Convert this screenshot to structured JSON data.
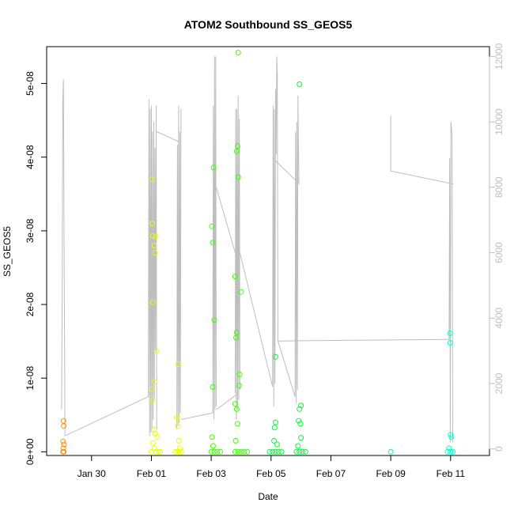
{
  "chart_data": {
    "type": "scatter",
    "title": "ATOM2 Southbound SS_GEOS5",
    "xlabel": "Date",
    "ylabel": "SS_GEOS5",
    "x_ticks": [
      "Jan 30",
      "Feb 01",
      "Feb 03",
      "Feb 05",
      "Feb 07",
      "Feb 09",
      "Feb 11"
    ],
    "x_tick_days": [
      30,
      32,
      34,
      36,
      38,
      40,
      42
    ],
    "xlim_days": [
      28.5,
      43.3
    ],
    "y_ticks": [
      "0e+00",
      "1e-08",
      "2e-08",
      "3e-08",
      "4e-08",
      "5e-08"
    ],
    "y_tick_values": [
      0,
      1e-08,
      2e-08,
      3e-08,
      4e-08,
      5e-08
    ],
    "ylim": [
      -5e-10,
      5.5e-08
    ],
    "y2_ticks": [
      "0",
      "2000",
      "4000",
      "6000",
      "8000",
      "10000",
      "12000"
    ],
    "y2_tick_values": [
      0,
      2000,
      4000,
      6000,
      8000,
      10000,
      12000
    ],
    "y2lim": [
      -200,
      12300
    ],
    "secondary_axis_color": "#bebebe",
    "altitude_line_color": "#bebebe",
    "grid": false,
    "flight_colors": [
      "#ff8c00",
      "#e6ff00",
      "#e6ff00",
      "#3cff00",
      "#3cff00",
      "#00ff33",
      "#00ff33",
      "#00ff99",
      "#00ffcc"
    ],
    "points": [
      [
        29.06,
        4.2e-09,
        0
      ],
      [
        29.07,
        3.5e-09,
        0
      ],
      [
        29.05,
        1.4e-09,
        0
      ],
      [
        29.08,
        1e-09,
        0
      ],
      [
        29.06,
        5e-10,
        0
      ],
      [
        29.05,
        0.0,
        0
      ],
      [
        29.07,
        0.0,
        0
      ],
      [
        32.02,
        3.7e-08,
        1
      ],
      [
        32.03,
        3.1e-08,
        1
      ],
      [
        32.05,
        2.93e-08,
        1
      ],
      [
        32.15,
        2.92e-08,
        1
      ],
      [
        32.1,
        2.8e-08,
        1
      ],
      [
        32.12,
        2.7e-08,
        1
      ],
      [
        32.05,
        2.03e-08,
        1
      ],
      [
        32.18,
        1.37e-08,
        1
      ],
      [
        32.1,
        9.5e-09,
        1
      ],
      [
        32.02,
        8.5e-09,
        1
      ],
      [
        32.04,
        7e-09,
        1
      ],
      [
        32.08,
        3e-09,
        1
      ],
      [
        32.12,
        2.5e-09,
        1
      ],
      [
        32.2,
        2e-09,
        1
      ],
      [
        32.05,
        1.2e-09,
        1
      ],
      [
        32.1,
        5e-10,
        1
      ],
      [
        32.0,
        0.0,
        1
      ],
      [
        32.15,
        0.0,
        1
      ],
      [
        32.25,
        0.0,
        1
      ],
      [
        32.3,
        0.0,
        1
      ],
      [
        32.9,
        1.19e-08,
        2
      ],
      [
        32.85,
        4.7e-09,
        2
      ],
      [
        32.88,
        3.5e-09,
        2
      ],
      [
        32.92,
        1.5e-09,
        2
      ],
      [
        32.95,
        5e-10,
        2
      ],
      [
        32.8,
        0.0,
        2
      ],
      [
        32.9,
        0.0,
        2
      ],
      [
        33.0,
        0.0,
        2
      ],
      [
        34.02,
        3.06e-08,
        3
      ],
      [
        34.08,
        3.86e-08,
        3
      ],
      [
        34.05,
        2.84e-08,
        3
      ],
      [
        34.1,
        1.79e-08,
        3
      ],
      [
        34.05,
        8.8e-09,
        3
      ],
      [
        34.03,
        2e-09,
        3
      ],
      [
        34.06,
        8e-10,
        3
      ],
      [
        34.0,
        0.0,
        3
      ],
      [
        34.1,
        0.0,
        3
      ],
      [
        34.2,
        0.0,
        3
      ],
      [
        34.3,
        0.0,
        3
      ],
      [
        34.9,
        5.42e-08,
        4
      ],
      [
        34.88,
        4.15e-08,
        4
      ],
      [
        34.85,
        4.08e-08,
        4
      ],
      [
        34.9,
        3.73e-08,
        4
      ],
      [
        34.8,
        2.38e-08,
        4
      ],
      [
        35.0,
        2.17e-08,
        4
      ],
      [
        34.85,
        1.62e-08,
        4
      ],
      [
        34.83,
        1.55e-08,
        4
      ],
      [
        34.95,
        1.05e-08,
        4
      ],
      [
        34.93,
        9e-09,
        4
      ],
      [
        34.8,
        6.5e-09,
        4
      ],
      [
        34.85,
        5.8e-09,
        4
      ],
      [
        34.88,
        3.8e-09,
        4
      ],
      [
        34.82,
        1.5e-09,
        4
      ],
      [
        34.8,
        0.0,
        4
      ],
      [
        34.9,
        0.0,
        4
      ],
      [
        35.0,
        0.0,
        4
      ],
      [
        35.1,
        0.0,
        4
      ],
      [
        35.2,
        0.0,
        4
      ],
      [
        36.15,
        1.29e-08,
        5
      ],
      [
        36.15,
        4e-09,
        5
      ],
      [
        36.12,
        3.3e-09,
        5
      ],
      [
        36.1,
        1.5e-09,
        5
      ],
      [
        36.2,
        1e-09,
        5
      ],
      [
        35.95,
        0.0,
        5
      ],
      [
        36.05,
        0.0,
        5
      ],
      [
        36.15,
        0.0,
        5
      ],
      [
        36.25,
        0.0,
        5
      ],
      [
        36.35,
        0.0,
        5
      ],
      [
        36.95,
        4.99e-08,
        6
      ],
      [
        37.0,
        6.3e-09,
        6
      ],
      [
        36.95,
        5.8e-09,
        6
      ],
      [
        36.92,
        4.2e-09,
        6
      ],
      [
        36.98,
        3.8e-09,
        6
      ],
      [
        37.0,
        1.9e-09,
        6
      ],
      [
        36.9,
        8e-10,
        6
      ],
      [
        36.85,
        0.0,
        6
      ],
      [
        36.95,
        0.0,
        6
      ],
      [
        37.05,
        0.0,
        6
      ],
      [
        37.15,
        0.0,
        6
      ],
      [
        40.0,
        0.0,
        7
      ],
      [
        41.98,
        1.61e-08,
        8
      ],
      [
        41.98,
        1.48e-08,
        8
      ],
      [
        42.0,
        2.3e-09,
        8
      ],
      [
        42.03,
        2e-09,
        8
      ],
      [
        41.95,
        5e-10,
        8
      ],
      [
        41.9,
        0.0,
        8
      ],
      [
        42.0,
        0.0,
        8
      ],
      [
        42.08,
        0.0,
        8
      ]
    ],
    "altitude_segments": [
      [
        [
          29.0,
          1200
        ],
        [
          29.02,
          5000
        ],
        [
          29.04,
          10600
        ],
        [
          29.06,
          11300
        ],
        [
          29.08,
          7000
        ],
        [
          29.1,
          3000
        ],
        [
          29.11,
          400
        ]
      ],
      [
        [
          29.11,
          400
        ],
        [
          31.9,
          1600
        ]
      ],
      [
        [
          31.9,
          1600
        ],
        [
          31.92,
          10700
        ],
        [
          31.94,
          400
        ],
        [
          31.96,
          10400
        ],
        [
          31.98,
          500
        ],
        [
          32.0,
          10500
        ],
        [
          32.02,
          600
        ],
        [
          32.04,
          9700
        ],
        [
          32.06,
          900
        ],
        [
          32.08,
          10000
        ],
        [
          32.1,
          1500
        ],
        [
          32.12,
          9200
        ],
        [
          32.14,
          3000
        ],
        [
          32.16,
          10500
        ],
        [
          32.18,
          600
        ]
      ],
      [
        [
          32.18,
          9700
        ],
        [
          32.9,
          9400
        ]
      ],
      [
        [
          32.85,
          600
        ],
        [
          32.87,
          9300
        ],
        [
          32.89,
          700
        ],
        [
          32.91,
          10500
        ],
        [
          32.93,
          800
        ],
        [
          32.95,
          9700
        ],
        [
          32.97,
          1100
        ],
        [
          32.99,
          10400
        ]
      ],
      [
        [
          32.99,
          900
        ],
        [
          34.05,
          1100
        ]
      ],
      [
        [
          34.05,
          1100
        ],
        [
          34.07,
          10500
        ],
        [
          34.09,
          900
        ],
        [
          34.11,
          12000
        ],
        [
          34.13,
          1200
        ],
        [
          34.15,
          12000
        ],
        [
          34.17,
          1300
        ]
      ],
      [
        [
          34.17,
          1200
        ],
        [
          34.9,
          1700
        ]
      ],
      [
        [
          34.17,
          8000
        ],
        [
          34.8,
          6000
        ]
      ],
      [
        [
          34.8,
          1700
        ],
        [
          34.82,
          10400
        ],
        [
          34.84,
          900
        ],
        [
          34.86,
          10400
        ],
        [
          34.88,
          1200
        ],
        [
          34.9,
          10800
        ],
        [
          34.92,
          1500
        ],
        [
          34.94,
          10100
        ],
        [
          34.96,
          1800
        ]
      ],
      [
        [
          34.96,
          6000
        ],
        [
          36.05,
          1900
        ]
      ],
      [
        [
          36.05,
          1900
        ],
        [
          36.07,
          10500
        ],
        [
          36.09,
          1300
        ],
        [
          36.11,
          10400
        ],
        [
          36.13,
          2000
        ],
        [
          36.15,
          11000
        ],
        [
          36.17,
          9000
        ],
        [
          36.19,
          12000
        ],
        [
          36.21,
          11500
        ],
        [
          36.23,
          3300
        ]
      ],
      [
        [
          36.23,
          3300
        ],
        [
          36.8,
          1600
        ]
      ],
      [
        [
          36.05,
          8900
        ],
        [
          36.95,
          8100
        ]
      ],
      [
        [
          36.8,
          1600
        ],
        [
          36.82,
          9700
        ],
        [
          36.84,
          1400
        ],
        [
          36.86,
          10000
        ],
        [
          36.88,
          1800
        ],
        [
          36.9,
          10800
        ],
        [
          36.93,
          8100
        ]
      ],
      [
        [
          36.23,
          3300
        ],
        [
          41.95,
          3350
        ]
      ],
      [
        [
          40.0,
          10200
        ],
        [
          40.0,
          8500
        ],
        [
          42.1,
          8100
        ]
      ],
      [
        [
          41.95,
          3350
        ],
        [
          41.97,
          8900
        ],
        [
          41.99,
          200
        ],
        [
          42.01,
          10000
        ],
        [
          42.03,
          9800
        ],
        [
          42.05,
          9500
        ],
        [
          42.07,
          200
        ]
      ]
    ]
  }
}
